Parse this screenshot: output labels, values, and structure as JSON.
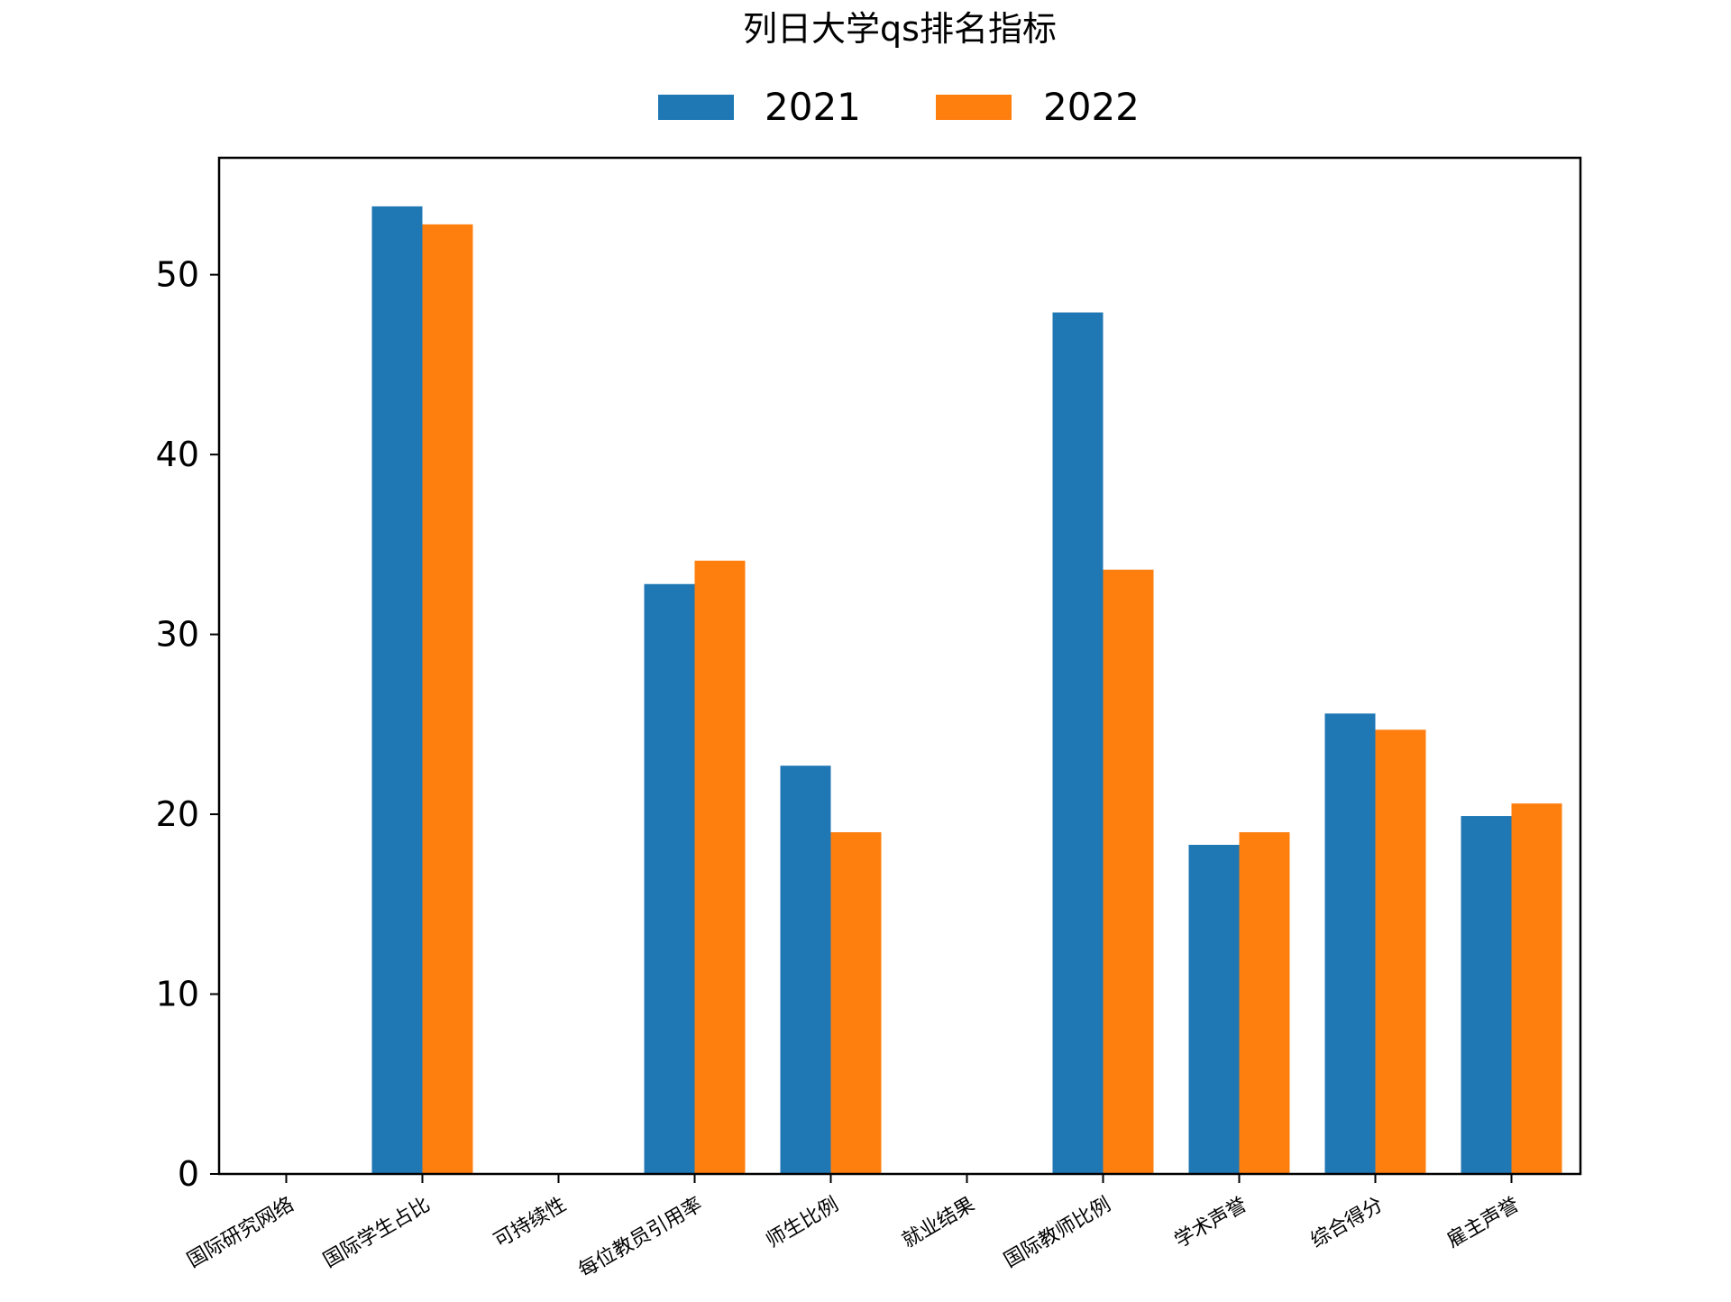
{
  "chart_data": {
    "type": "bar",
    "title": "列日大学qs排名指标",
    "xlabel": "",
    "ylabel": "",
    "categories": [
      "国际研究网络",
      "国际学生占比",
      "可持续性",
      "每位教员引用率",
      "师生比例",
      "就业结果",
      "国际教师比例",
      "学术声誉",
      "综合得分",
      "雇主声誉"
    ],
    "series": [
      {
        "name": "2021",
        "color": "#1f77b4",
        "values": [
          0,
          53.8,
          0,
          32.8,
          22.7,
          0,
          47.9,
          18.3,
          25.6,
          19.9
        ]
      },
      {
        "name": "2022",
        "color": "#ff7f0e",
        "values": [
          0,
          52.8,
          0,
          34.1,
          19.0,
          0,
          33.6,
          19.0,
          24.7,
          20.6
        ]
      }
    ],
    "ylim": [
      0,
      56.5
    ],
    "yticks": [
      0,
      10,
      20,
      30,
      40,
      50
    ],
    "legend_position": "top-center",
    "grid": false
  }
}
